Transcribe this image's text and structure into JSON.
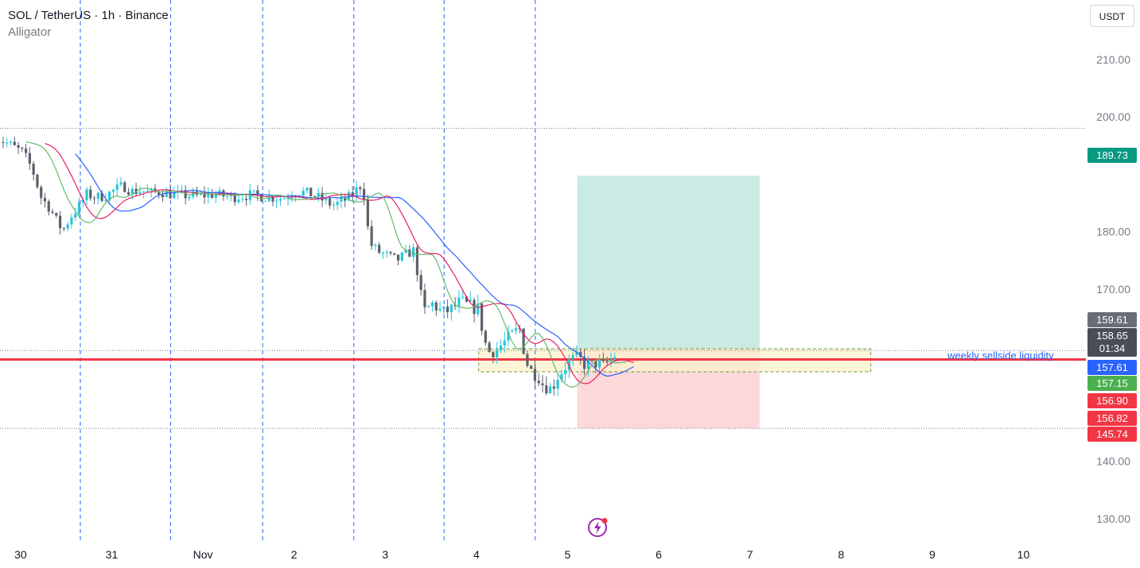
{
  "header": {
    "symbol": "SOL / TetherUS · 1h · Binance",
    "indicator": "Alligator",
    "currency": "USDT"
  },
  "annotation": "weekly sellside liquidity",
  "price_tags": [
    {
      "label": "189.73",
      "color": "#089981",
      "value": 189.73
    },
    {
      "label": "159.61",
      "color": "#6a6d78",
      "value": 159.61
    },
    {
      "label": "158.65",
      "sub": "01:34",
      "color": "#4a4d57",
      "value": 158.65
    },
    {
      "label": "157.61",
      "color": "#2962ff",
      "value": 157.61
    },
    {
      "label": "157.15",
      "color": "#4caf50",
      "value": 157.15
    },
    {
      "label": "156.90",
      "color": "#f23645",
      "value": 156.9
    },
    {
      "label": "156.82",
      "color": "#f23645",
      "value": 156.82
    },
    {
      "label": "145.74",
      "color": "#f23645",
      "value": 145.74
    }
  ],
  "colors": {
    "up": "#26c6da",
    "down": "#5d606b",
    "jaw": "#2962ff",
    "teeth": "#e91e63",
    "lips": "#66bb6a",
    "support_line": "#f23645",
    "session_line": "#2962ff",
    "profit_zone": "#c9ebe3",
    "loss_zone": "#fcd8da",
    "supply_box": "#fff1cc"
  },
  "chart_data": {
    "type": "candlestick",
    "y_ticks": [
      130,
      140,
      170,
      180,
      200,
      210
    ],
    "ylim": [
      123.5,
      215.5
    ],
    "x_ticks": [
      {
        "label": "30",
        "t": -0.9
      },
      {
        "label": "31",
        "t": 0.1
      },
      {
        "label": "Nov",
        "t": 1.1
      },
      {
        "label": "2",
        "t": 2.1
      },
      {
        "label": "3",
        "t": 3.1
      },
      {
        "label": "4",
        "t": 4.1
      },
      {
        "label": "5",
        "t": 5.1
      },
      {
        "label": "6",
        "t": 6.1
      },
      {
        "label": "7",
        "t": 7.1
      },
      {
        "label": "8",
        "t": 8.1
      },
      {
        "label": "9",
        "t": 9.1
      },
      {
        "label": "10",
        "t": 10.1
      }
    ],
    "session_breaks": [
      -0.07,
      0.92,
      1.93,
      2.93,
      3.92,
      4.92
    ],
    "horizontal_levels": {
      "resistance": 198.0,
      "support_dotted_upper": 159.3,
      "sellside_liquidity": 157.61,
      "support_dotted_lower": 145.74
    },
    "position": {
      "t_start": 5.38,
      "t_end": 7.38,
      "entry": 159.61,
      "target": 189.73,
      "stop": 145.74
    },
    "zone_box": {
      "t_start": 4.3,
      "t_end": 8.6,
      "top": 159.61,
      "bottom": 155.6
    },
    "price_path": [
      [
        -1.0,
        196.5
      ],
      [
        -0.85,
        195.2
      ],
      [
        -0.7,
        193.8
      ],
      [
        -0.6,
        191.0
      ],
      [
        -0.5,
        186.0
      ],
      [
        -0.4,
        184.0
      ],
      [
        -0.3,
        181.0
      ],
      [
        -0.25,
        180.5
      ],
      [
        -0.18,
        182.5
      ],
      [
        -0.08,
        184.5
      ],
      [
        0.0,
        186.5
      ],
      [
        0.1,
        186.0
      ],
      [
        0.2,
        186.2
      ],
      [
        0.3,
        187.2
      ],
      [
        0.4,
        188.0
      ],
      [
        0.5,
        187.0
      ],
      [
        0.6,
        187.2
      ],
      [
        0.7,
        186.7
      ],
      [
        0.8,
        187.0
      ],
      [
        0.9,
        186.6
      ],
      [
        1.0,
        186.4
      ],
      [
        1.2,
        186.2
      ],
      [
        1.4,
        186.5
      ],
      [
        1.6,
        186.0
      ],
      [
        1.8,
        186.4
      ],
      [
        2.0,
        186.0
      ],
      [
        2.15,
        185.8
      ],
      [
        2.3,
        187.0
      ],
      [
        2.4,
        186.8
      ],
      [
        2.5,
        186.3
      ],
      [
        2.6,
        185.4
      ],
      [
        2.7,
        184.6
      ],
      [
        2.8,
        185.2
      ],
      [
        2.9,
        186.2
      ],
      [
        3.0,
        188.0
      ],
      [
        3.05,
        186.0
      ],
      [
        3.1,
        178.0
      ],
      [
        3.2,
        176.5
      ],
      [
        3.3,
        175.8
      ],
      [
        3.4,
        175.0
      ],
      [
        3.5,
        176.0
      ],
      [
        3.6,
        176.8
      ],
      [
        3.65,
        170.0
      ],
      [
        3.7,
        166.0
      ],
      [
        3.8,
        167.5
      ],
      [
        3.9,
        165.8
      ],
      [
        4.0,
        166.5
      ],
      [
        4.1,
        167.8
      ],
      [
        4.2,
        167.0
      ],
      [
        4.3,
        166.5
      ],
      [
        4.35,
        162.0
      ],
      [
        4.4,
        159.0
      ],
      [
        4.5,
        159.5
      ],
      [
        4.6,
        161.0
      ],
      [
        4.7,
        162.5
      ],
      [
        4.75,
        163.0
      ],
      [
        4.8,
        159.0
      ],
      [
        4.85,
        156.0
      ],
      [
        4.95,
        155.0
      ],
      [
        5.0,
        153.5
      ],
      [
        5.1,
        152.5
      ],
      [
        5.15,
        154.5
      ],
      [
        5.25,
        156.5
      ],
      [
        5.3,
        157.5
      ],
      [
        5.4,
        158.0
      ],
      [
        5.45,
        157.0
      ],
      [
        5.55,
        156.6
      ],
      [
        5.6,
        157.4
      ],
      [
        5.65,
        156.3
      ],
      [
        5.75,
        157.6
      ],
      [
        5.8,
        158.6
      ]
    ]
  }
}
